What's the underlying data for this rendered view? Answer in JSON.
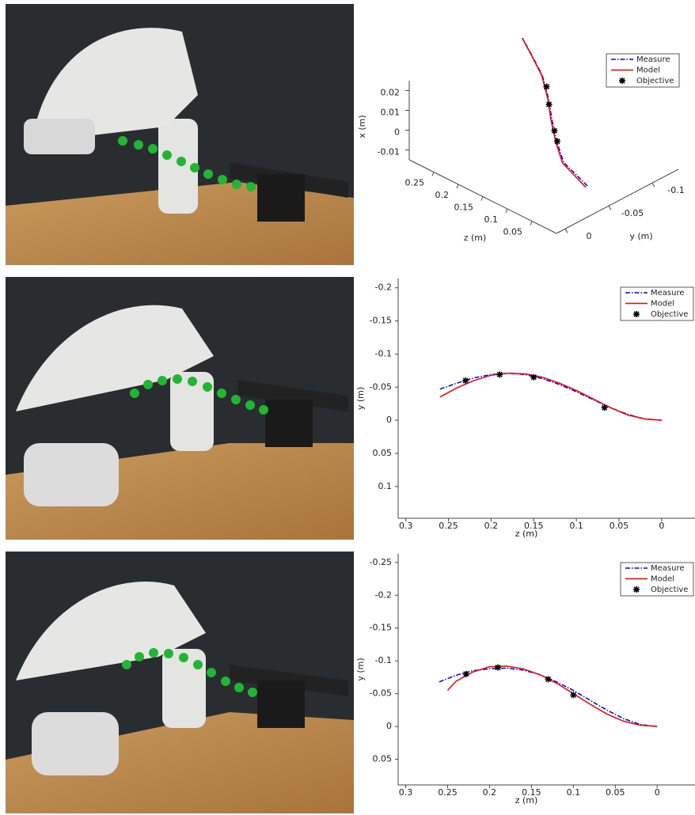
{
  "chart_data": [
    {
      "type": "line3d",
      "x_label": "x (m)",
      "y_label": "y (m)",
      "z_label": "z (m)",
      "xlim": [
        -0.015,
        0.025
      ],
      "ylim": [
        0.01,
        -0.13
      ],
      "zlim": [
        0,
        0.3
      ],
      "xticks": [
        0.02,
        0.01,
        0,
        -0.01
      ],
      "yticks": [
        0,
        -0.05,
        -0.1
      ],
      "zticks": [
        0.05,
        0.1,
        0.15,
        0.2,
        0.25
      ],
      "legend": "upper right",
      "series": [
        {
          "name": "Measure",
          "color": "#0000ff",
          "style": "dashdot",
          "z": [
            0,
            0.04,
            0.08,
            0.12,
            0.16,
            0.2,
            0.23,
            0.26
          ],
          "y": [
            -0.0255,
            -0.0207,
            -0.0351,
            -0.0522,
            -0.0711,
            -0.0864,
            -0.0915,
            -0.0975
          ],
          "x": [
            0.0008,
            0.0089,
            0.0114,
            0.0137,
            0.0144,
            0.0178,
            0.0229,
            0.0266
          ]
        },
        {
          "name": "Model",
          "color": "#ff0000",
          "style": "solid",
          "z": [
            0,
            0.04,
            0.08,
            0.12,
            0.16,
            0.2,
            0.23,
            0.26
          ],
          "y": [
            -0.0235,
            -0.0195,
            -0.0341,
            -0.0512,
            -0.0703,
            -0.0858,
            -0.0911,
            -0.0972
          ],
          "x": [
            0.0006,
            0.0088,
            0.0113,
            0.0136,
            0.0144,
            0.0178,
            0.0229,
            0.0266
          ]
        },
        {
          "name": "Objective",
          "color": "#000000",
          "style": "marker",
          "z": [
            0.18,
            0.15,
            0.1,
            0.08
          ],
          "y": [
            -0.08,
            -0.066,
            -0.044,
            -0.036
          ],
          "x": [
            0.016,
            0.014,
            0.012,
            0.011
          ]
        }
      ]
    },
    {
      "type": "line",
      "x_label": "z (m)",
      "y_label": "y (m)",
      "xlim": [
        0.309,
        -0.041
      ],
      "ylim": [
        -0.214,
        0.148
      ],
      "xticks": [
        0.3,
        0.25,
        0.2,
        0.15,
        0.1,
        0.05,
        0
      ],
      "yticks": [
        -0.2,
        -0.15,
        -0.1,
        -0.05,
        0,
        0.05,
        0.1
      ],
      "legend": "upper right",
      "series": [
        {
          "name": "Measure",
          "color": "#0000ff",
          "style": "dashdot",
          "x": [
            0.26,
            0.24,
            0.22,
            0.2,
            0.18,
            0.16,
            0.14,
            0.12,
            0.1,
            0.08,
            0.06,
            0.04,
            0.02,
            0
          ],
          "values": [
            -0.047,
            -0.056,
            -0.064,
            -0.069,
            -0.071,
            -0.069,
            -0.063,
            -0.054,
            -0.043,
            -0.031,
            -0.019,
            -0.009,
            -0.002,
            0
          ]
        },
        {
          "name": "Model",
          "color": "#ff0000",
          "style": "solid",
          "x": [
            0.26,
            0.24,
            0.22,
            0.2,
            0.18,
            0.16,
            0.14,
            0.12,
            0.1,
            0.08,
            0.06,
            0.04,
            0.02,
            0
          ],
          "values": [
            -0.035,
            -0.049,
            -0.06,
            -0.068,
            -0.071,
            -0.07,
            -0.065,
            -0.056,
            -0.045,
            -0.032,
            -0.019,
            -0.008,
            -0.002,
            0
          ]
        },
        {
          "name": "Objective",
          "color": "#000000",
          "style": "marker",
          "x": [
            0.23,
            0.19,
            0.15,
            0.067
          ],
          "values": [
            -0.06,
            -0.069,
            -0.065,
            -0.019
          ]
        }
      ]
    },
    {
      "type": "line",
      "x_label": "z (m)",
      "y_label": "y (m)",
      "xlim": [
        0.309,
        -0.047
      ],
      "ylim": [
        -0.263,
        0.089
      ],
      "xticks": [
        0.3,
        0.25,
        0.2,
        0.15,
        0.1,
        0.05,
        0
      ],
      "yticks": [
        -0.25,
        -0.2,
        -0.15,
        -0.1,
        -0.05,
        0,
        0.05
      ],
      "legend": "upper right",
      "series": [
        {
          "name": "Measure",
          "color": "#0000ff",
          "style": "dashdot",
          "x": [
            0.26,
            0.24,
            0.22,
            0.2,
            0.18,
            0.16,
            0.14,
            0.12,
            0.1,
            0.08,
            0.06,
            0.04,
            0.02,
            0
          ],
          "values": [
            -0.068,
            -0.078,
            -0.085,
            -0.088,
            -0.089,
            -0.086,
            -0.079,
            -0.068,
            -0.055,
            -0.04,
            -0.025,
            -0.012,
            -0.003,
            0
          ]
        },
        {
          "name": "Model",
          "color": "#ff0000",
          "style": "solid",
          "x": [
            0.25,
            0.24,
            0.22,
            0.2,
            0.18,
            0.16,
            0.14,
            0.12,
            0.1,
            0.08,
            0.06,
            0.04,
            0.02,
            0
          ],
          "values": [
            -0.055,
            -0.069,
            -0.083,
            -0.091,
            -0.092,
            -0.088,
            -0.079,
            -0.066,
            -0.05,
            -0.034,
            -0.019,
            -0.008,
            -0.002,
            0
          ]
        },
        {
          "name": "Objective",
          "color": "#000000",
          "style": "marker",
          "x": [
            0.228,
            0.19,
            0.13,
            0.1
          ],
          "values": [
            -0.08,
            -0.09,
            -0.072,
            -0.048
          ]
        }
      ]
    }
  ]
}
